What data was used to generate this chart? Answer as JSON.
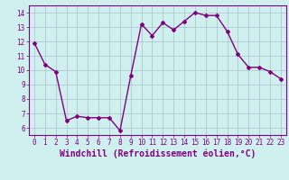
{
  "x": [
    0,
    1,
    2,
    3,
    4,
    5,
    6,
    7,
    8,
    9,
    10,
    11,
    12,
    13,
    14,
    15,
    16,
    17,
    18,
    19,
    20,
    21,
    22,
    23
  ],
  "y": [
    11.9,
    10.4,
    9.9,
    6.5,
    6.8,
    6.7,
    6.7,
    6.7,
    5.8,
    9.6,
    13.2,
    12.4,
    13.3,
    12.8,
    13.4,
    14.0,
    13.8,
    13.8,
    12.7,
    11.1,
    10.2,
    10.2,
    9.9,
    9.4
  ],
  "line_color": "#800080",
  "marker": "D",
  "marker_size": 2.0,
  "linewidth": 1.0,
  "xlabel": "Windchill (Refroidissement éolien,°C)",
  "xlabel_fontsize": 7,
  "ylim": [
    5.5,
    14.5
  ],
  "yticks": [
    6,
    7,
    8,
    9,
    10,
    11,
    12,
    13,
    14
  ],
  "xticks": [
    0,
    1,
    2,
    3,
    4,
    5,
    6,
    7,
    8,
    9,
    10,
    11,
    12,
    13,
    14,
    15,
    16,
    17,
    18,
    19,
    20,
    21,
    22,
    23
  ],
  "tick_fontsize": 5.5,
  "bg_color": "#cff0ee",
  "grid_color": "#aac0cc",
  "spine_color": "#800080"
}
